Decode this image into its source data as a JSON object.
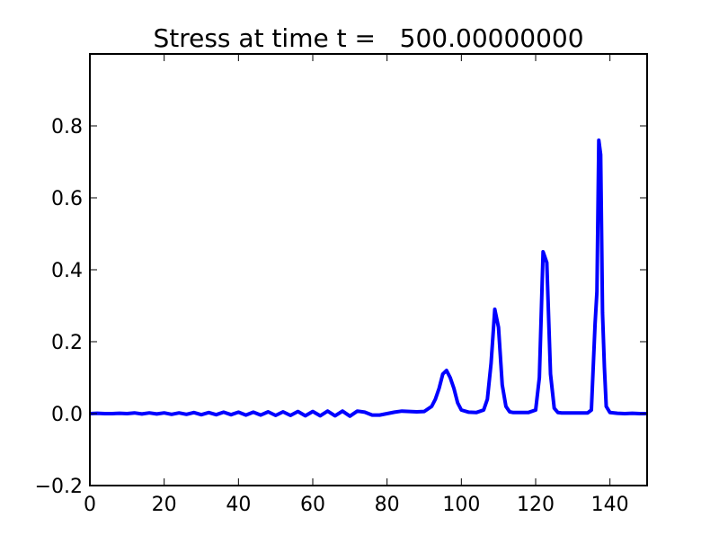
{
  "chart_data": {
    "type": "line",
    "title": "Stress at time t =   500.00000000",
    "xlabel": "",
    "ylabel": "",
    "xlim": [
      0,
      150
    ],
    "ylim": [
      -0.2,
      1.0
    ],
    "xticks": [
      0,
      20,
      40,
      60,
      80,
      100,
      120,
      140
    ],
    "yticks": [
      -0.2,
      0.0,
      0.2,
      0.4,
      0.6,
      0.8
    ],
    "xtick_labels": [
      "0",
      "20",
      "40",
      "60",
      "80",
      "100",
      "120",
      "140"
    ],
    "ytick_labels": [
      "−0.2",
      "0.0",
      "0.2",
      "0.4",
      "0.6",
      "0.8"
    ],
    "grid": false,
    "legend": null,
    "series": [
      {
        "color": "#0000ff",
        "x": [
          0,
          2,
          4,
          6,
          8,
          10,
          12,
          14,
          16,
          18,
          20,
          22,
          24,
          26,
          28,
          30,
          32,
          34,
          36,
          38,
          40,
          42,
          44,
          46,
          48,
          50,
          52,
          54,
          56,
          58,
          60,
          62,
          64,
          66,
          68,
          70,
          72,
          74,
          76,
          78,
          80,
          82,
          84,
          86,
          88,
          90,
          92,
          93,
          94,
          95,
          96,
          97,
          98,
          99,
          100,
          102,
          104,
          106,
          107,
          108,
          109,
          110,
          111,
          112,
          113,
          114,
          116,
          118,
          120,
          121,
          122,
          123,
          124,
          125,
          126,
          127,
          128,
          130,
          132,
          134,
          135,
          136,
          136.5,
          137,
          137.5,
          138,
          138.5,
          139,
          140,
          142,
          144,
          146,
          148,
          150
        ],
        "y": [
          0.0,
          0.001,
          0.0,
          0.0,
          0.001,
          0.0,
          0.002,
          -0.001,
          0.002,
          -0.001,
          0.002,
          -0.002,
          0.002,
          -0.002,
          0.003,
          -0.003,
          0.003,
          -0.003,
          0.004,
          -0.003,
          0.004,
          -0.004,
          0.004,
          -0.004,
          0.005,
          -0.005,
          0.005,
          -0.005,
          0.006,
          -0.006,
          0.006,
          -0.006,
          0.007,
          -0.006,
          0.007,
          -0.007,
          0.007,
          0.004,
          -0.004,
          -0.004,
          0.0,
          0.004,
          0.007,
          0.006,
          0.005,
          0.006,
          0.02,
          0.04,
          0.07,
          0.11,
          0.12,
          0.1,
          0.07,
          0.03,
          0.01,
          0.004,
          0.003,
          0.01,
          0.04,
          0.14,
          0.29,
          0.24,
          0.08,
          0.02,
          0.005,
          0.003,
          0.003,
          0.003,
          0.01,
          0.1,
          0.45,
          0.42,
          0.11,
          0.015,
          0.003,
          0.002,
          0.002,
          0.002,
          0.002,
          0.002,
          0.01,
          0.25,
          0.34,
          0.76,
          0.72,
          0.28,
          0.13,
          0.02,
          0.003,
          0.001,
          0.0,
          0.001,
          0.0,
          0.0
        ]
      }
    ]
  }
}
